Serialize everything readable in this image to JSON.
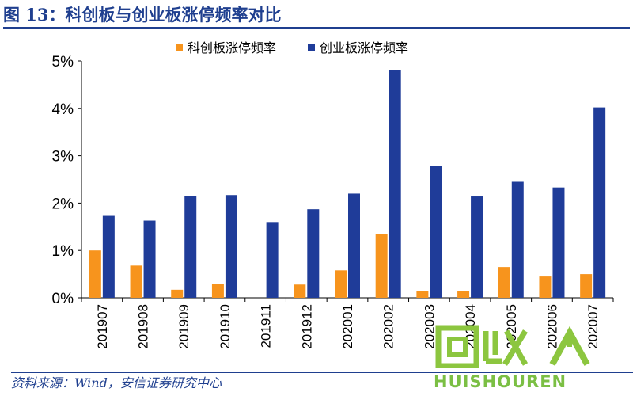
{
  "title": "图 13：科创板与创业板涨停频率对比",
  "footer": "资料来源：Wind，安信证券研究中心",
  "watermark": {
    "text": "HUISHOUREN",
    "color": "#8cc63f"
  },
  "chart_data": {
    "type": "bar",
    "categories": [
      "201907",
      "201908",
      "201909",
      "201910",
      "201911",
      "201912",
      "202001",
      "202002",
      "202003",
      "202004",
      "202005",
      "202006",
      "202007"
    ],
    "series": [
      {
        "name": "科创板涨停频率",
        "color": "#f7941d",
        "values": [
          1.0,
          0.68,
          0.17,
          0.3,
          0.0,
          0.28,
          0.58,
          1.35,
          0.15,
          0.15,
          0.65,
          0.45,
          0.5
        ]
      },
      {
        "name": "创业板涨停频率",
        "color": "#1f3c99",
        "values": [
          1.73,
          1.63,
          2.15,
          2.17,
          1.6,
          1.87,
          2.2,
          4.8,
          2.78,
          2.14,
          2.45,
          2.33,
          4.02
        ]
      }
    ],
    "ylim": [
      0,
      5
    ],
    "yticks": [
      "0%",
      "1%",
      "2%",
      "3%",
      "4%",
      "5%"
    ],
    "legend": "top",
    "grid": false
  }
}
